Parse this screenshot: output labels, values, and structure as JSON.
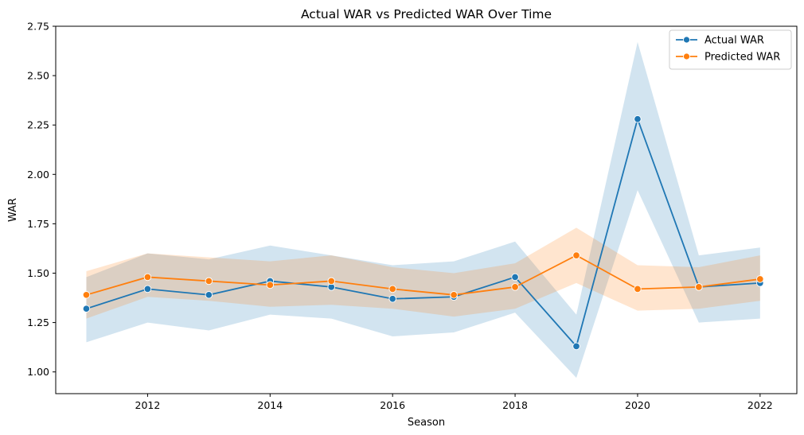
{
  "chart_data": {
    "type": "line",
    "title": "Actual WAR vs Predicted WAR Over Time",
    "xlabel": "Season",
    "ylabel": "WAR",
    "x": [
      2011,
      2012,
      2013,
      2014,
      2015,
      2016,
      2017,
      2018,
      2019,
      2020,
      2021,
      2022
    ],
    "xlim": [
      2010.5,
      2022.6
    ],
    "ylim": [
      0.89,
      2.75
    ],
    "xticks": [
      2012,
      2014,
      2016,
      2018,
      2020,
      2022
    ],
    "yticks": [
      1.0,
      1.25,
      1.5,
      1.75,
      2.0,
      2.25,
      2.5,
      2.75
    ],
    "ytick_labels": [
      "1.00",
      "1.25",
      "1.50",
      "1.75",
      "2.00",
      "2.25",
      "2.50",
      "2.75"
    ],
    "legend_position": "top-right",
    "grid": false,
    "series": [
      {
        "name": "Actual WAR",
        "color": "#1f77b4",
        "values": [
          1.32,
          1.42,
          1.39,
          1.46,
          1.43,
          1.37,
          1.38,
          1.48,
          1.13,
          2.28,
          1.43,
          1.45
        ],
        "ci_lower": [
          1.15,
          1.25,
          1.21,
          1.29,
          1.27,
          1.18,
          1.2,
          1.3,
          0.97,
          1.92,
          1.25,
          1.27
        ],
        "ci_upper": [
          1.48,
          1.6,
          1.57,
          1.64,
          1.59,
          1.54,
          1.56,
          1.66,
          1.29,
          2.67,
          1.59,
          1.63
        ]
      },
      {
        "name": "Predicted WAR",
        "color": "#ff7f0e",
        "values": [
          1.39,
          1.48,
          1.46,
          1.44,
          1.46,
          1.42,
          1.39,
          1.43,
          1.59,
          1.42,
          1.43,
          1.47
        ],
        "ci_lower": [
          1.27,
          1.38,
          1.36,
          1.33,
          1.34,
          1.32,
          1.28,
          1.32,
          1.45,
          1.31,
          1.32,
          1.36
        ],
        "ci_upper": [
          1.51,
          1.6,
          1.58,
          1.56,
          1.59,
          1.53,
          1.5,
          1.55,
          1.73,
          1.54,
          1.53,
          1.59
        ]
      }
    ]
  }
}
